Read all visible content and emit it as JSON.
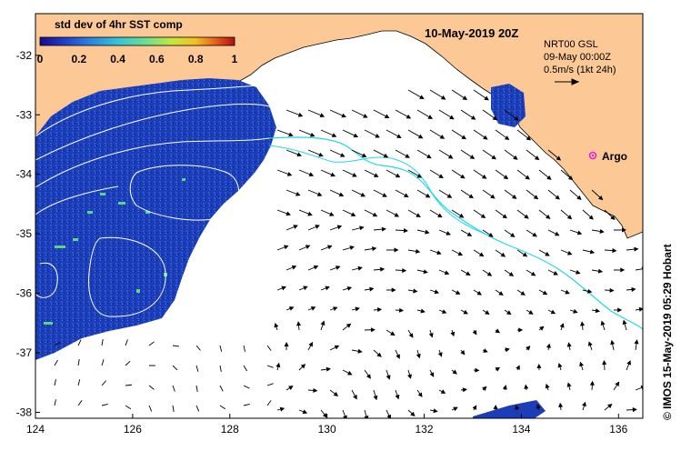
{
  "map": {
    "title": "10-May-2019 20Z",
    "colorbar": {
      "title": "std dev of 4hr SST comp",
      "ticks": [
        "0",
        "0.2",
        "0.4",
        "0.6",
        "0.8",
        "1"
      ],
      "range": [
        0,
        1
      ],
      "colors": [
        "#1a0a8c",
        "#1f3cc8",
        "#2a7fe0",
        "#35c4d8",
        "#6ee08c",
        "#c8e63c",
        "#f2c020",
        "#e8601c",
        "#b01010"
      ]
    },
    "current_info": {
      "line1": "NRT00 GSL",
      "line2": "09-May 00:00Z",
      "scale_label": "0.5m/s (1kt 24h)"
    },
    "argo_label": "Argo",
    "credit": "© IMOS 15-May-2019 05:29 Hobart",
    "x_ticks": [
      "124",
      "126",
      "128",
      "130",
      "132",
      "134",
      "136"
    ],
    "y_ticks": [
      "-32",
      "-33",
      "-34",
      "-35",
      "-36",
      "-37",
      "-38"
    ],
    "lon_range": [
      124,
      136.5
    ],
    "lat_range": [
      -38.1,
      -31.3
    ],
    "colors": {
      "land": "#fbc896",
      "ocean": "#ffffff",
      "sst_blue": "#1a3cb4",
      "isoline": "#ffffff",
      "cyan_line": "#22d8e8",
      "argo": "#e820d8"
    }
  }
}
